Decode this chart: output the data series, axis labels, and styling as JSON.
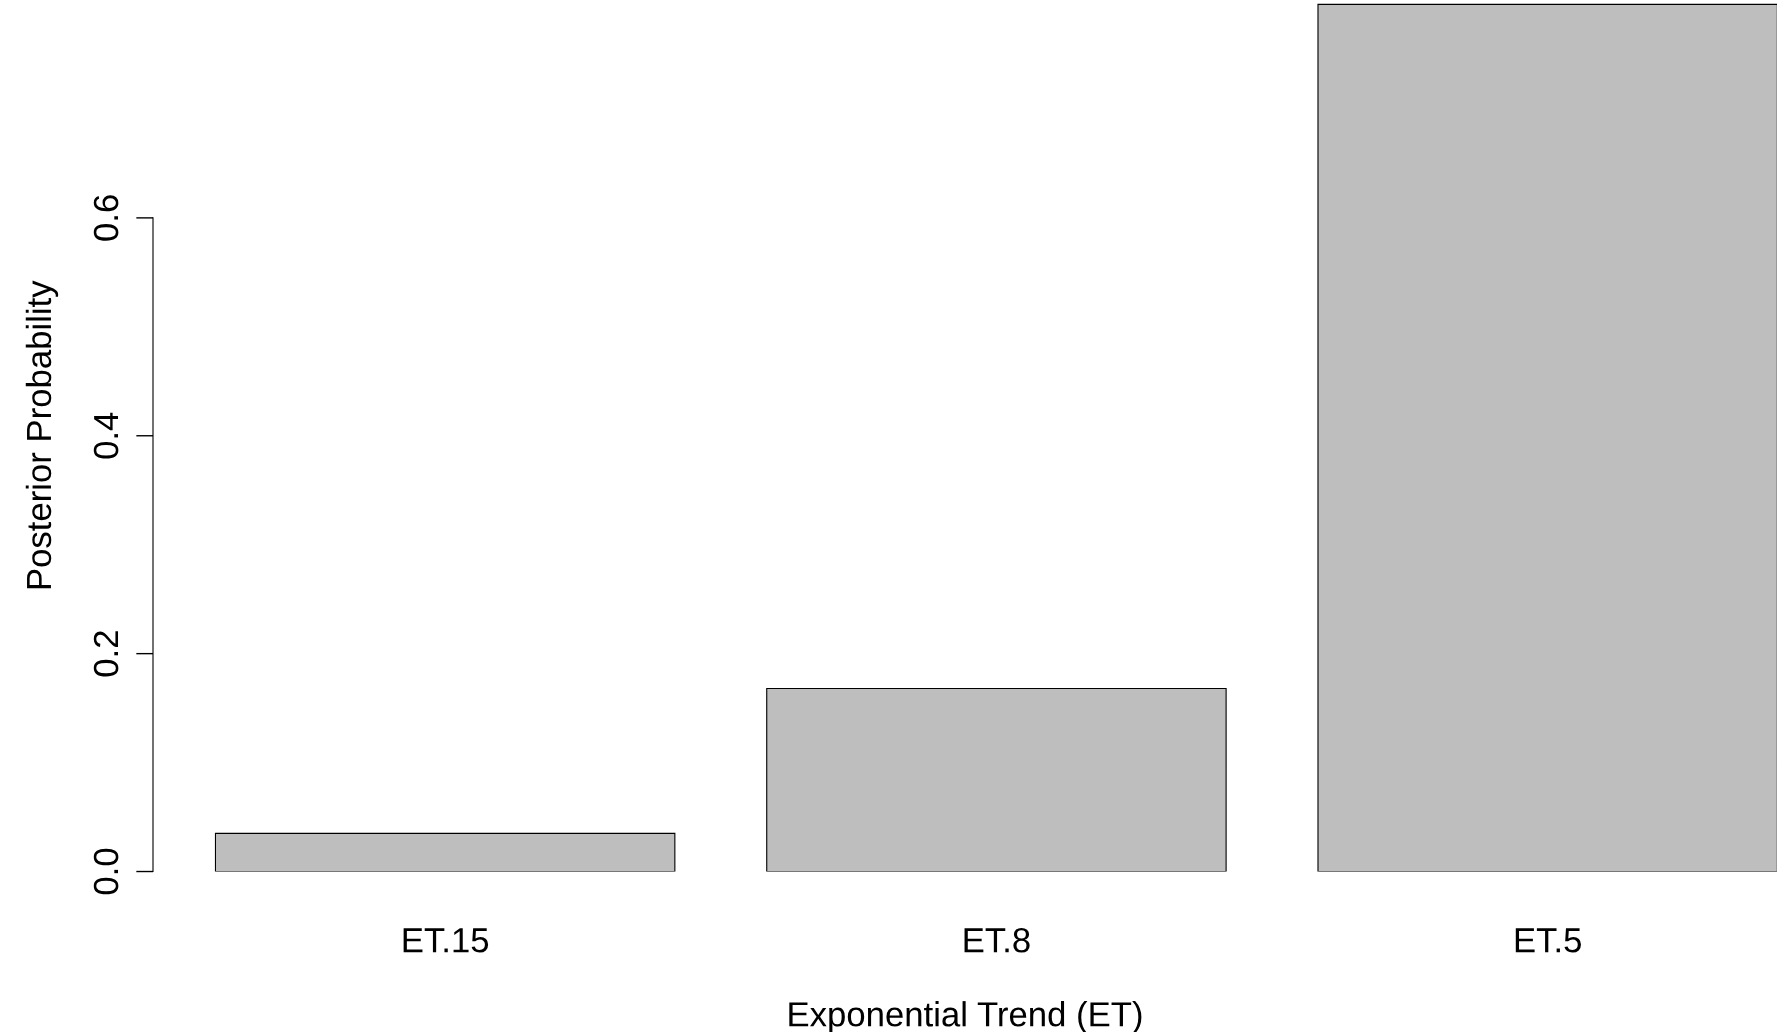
{
  "chart_data": {
    "type": "bar",
    "xlabel": "Exponential Trend (ET)",
    "ylabel": "Posterior Probability",
    "categories": [
      "ET.15",
      "ET.8",
      "ET.5"
    ],
    "values": [
      0.035,
      0.168,
      0.796
    ],
    "color": "#bebebe",
    "ylim": [
      0,
      0.8
    ],
    "yticks": [
      {
        "value": 0,
        "label": "0.0"
      },
      {
        "value": 0.2,
        "label": "0.2"
      },
      {
        "value": 0.4,
        "label": "0.4"
      },
      {
        "value": 0.6,
        "label": "0.6"
      }
    ],
    "grid": false
  }
}
